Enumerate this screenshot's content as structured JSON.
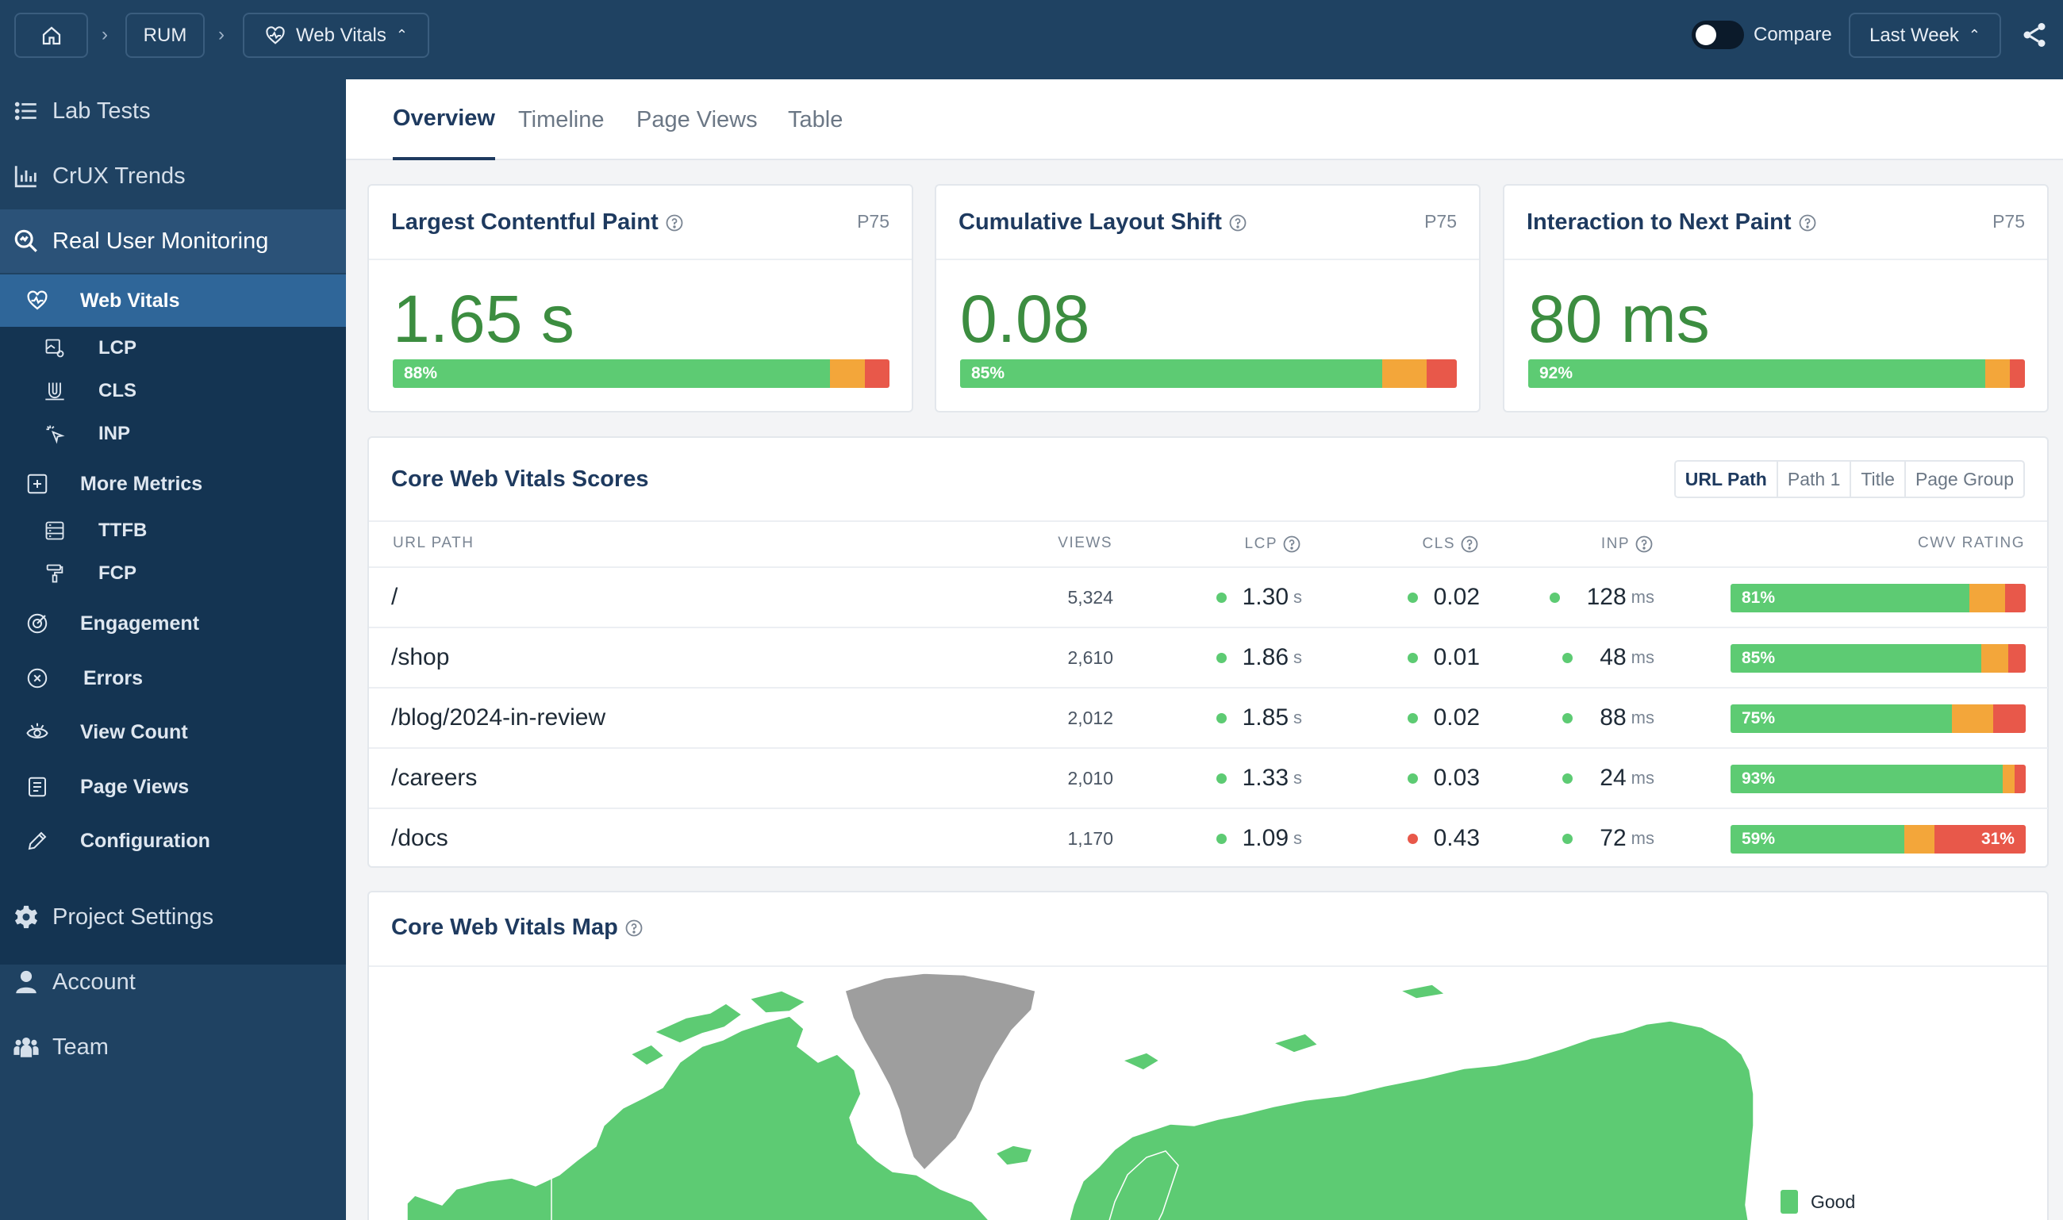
{
  "breadcrumb": {
    "home_icon": "home-icon",
    "rum": "RUM",
    "section": "Web Vitals",
    "section_icon": "heart-pulse-icon"
  },
  "header": {
    "compare_label": "Compare",
    "compare_enabled": false,
    "period": "Last Week",
    "share_icon": "share-icon"
  },
  "sidebar": {
    "items": [
      {
        "label": "Lab Tests",
        "icon": "list-icon"
      },
      {
        "label": "CrUX Trends",
        "icon": "bar-chart-icon"
      },
      {
        "label": "Real User Monitoring",
        "icon": "search-analytics-icon"
      },
      {
        "label": "Project Settings",
        "icon": "gear-icon"
      },
      {
        "label": "Account",
        "icon": "user-icon"
      },
      {
        "label": "Team",
        "icon": "team-icon"
      }
    ],
    "rum_items": [
      {
        "label": "Web Vitals",
        "icon": "heart-pulse-icon"
      },
      {
        "label": "LCP",
        "icon": "image-icon"
      },
      {
        "label": "CLS",
        "icon": "magnet-icon"
      },
      {
        "label": "INP",
        "icon": "pointer-click-icon"
      },
      {
        "label": "More Metrics",
        "icon": "plus-square-icon"
      },
      {
        "label": "TTFB",
        "icon": "server-icon"
      },
      {
        "label": "FCP",
        "icon": "paint-roller-icon"
      },
      {
        "label": "Engagement",
        "icon": "target-icon"
      },
      {
        "label": "Errors",
        "icon": "x-circle-icon"
      },
      {
        "label": "View Count",
        "icon": "eye-icon"
      },
      {
        "label": "Page Views",
        "icon": "document-icon"
      },
      {
        "label": "Configuration",
        "icon": "pencil-icon"
      }
    ]
  },
  "tabs": [
    "Overview",
    "Timeline",
    "Page Views",
    "Table"
  ],
  "metrics": [
    {
      "title": "Largest Contentful Paint",
      "percentile": "P75",
      "value": "1.65 s",
      "good_label": "88%",
      "good": 88,
      "ni": 7,
      "poor": 5
    },
    {
      "title": "Cumulative Layout Shift",
      "percentile": "P75",
      "value": "0.08",
      "good_label": "85%",
      "good": 85,
      "ni": 9,
      "poor": 6
    },
    {
      "title": "Interaction to Next Paint",
      "percentile": "P75",
      "value": "80 ms",
      "good_label": "92%",
      "good": 92,
      "ni": 5,
      "poor": 3
    }
  ],
  "scores": {
    "title": "Core Web Vitals Scores",
    "group_options": [
      "URL Path",
      "Path 1",
      "Title",
      "Page Group"
    ],
    "selected_group": "URL Path",
    "columns": {
      "path": "URL PATH",
      "views": "VIEWS",
      "lcp": "LCP",
      "cls": "CLS",
      "inp": "INP",
      "rating": "CWV RATING"
    },
    "rows": [
      {
        "path": "/",
        "views": "5,324",
        "lcp": "1.30",
        "lcp_unit": "s",
        "cls": "0.02",
        "cls_status": "good",
        "inp": "128",
        "inp_unit": "ms",
        "good_label": "81%",
        "good": 81,
        "ni": 12,
        "poor": 7,
        "poor_label": ""
      },
      {
        "path": "/shop",
        "views": "2,610",
        "lcp": "1.86",
        "lcp_unit": "s",
        "cls": "0.01",
        "cls_status": "good",
        "inp": "48",
        "inp_unit": "ms",
        "good_label": "85%",
        "good": 85,
        "ni": 9,
        "poor": 6,
        "poor_label": ""
      },
      {
        "path": "/blog/2024-in-review",
        "views": "2,012",
        "lcp": "1.85",
        "lcp_unit": "s",
        "cls": "0.02",
        "cls_status": "good",
        "inp": "88",
        "inp_unit": "ms",
        "good_label": "75%",
        "good": 75,
        "ni": 14,
        "poor": 11,
        "poor_label": ""
      },
      {
        "path": "/careers",
        "views": "2,010",
        "lcp": "1.33",
        "lcp_unit": "s",
        "cls": "0.03",
        "cls_status": "good",
        "inp": "24",
        "inp_unit": "ms",
        "good_label": "93%",
        "good": 93,
        "ni": 4,
        "poor": 3,
        "poor_label": ""
      },
      {
        "path": "/docs",
        "views": "1,170",
        "lcp": "1.09",
        "lcp_unit": "s",
        "cls": "0.43",
        "cls_status": "poor",
        "inp": "72",
        "inp_unit": "ms",
        "good_label": "59%",
        "good": 59,
        "ni": 10,
        "poor": 31,
        "poor_label": "31%"
      }
    ]
  },
  "map": {
    "title": "Core Web Vitals Map",
    "legend": [
      "Good"
    ]
  },
  "colors": {
    "good": "#5dcb73",
    "needs_improvement": "#f3a63a",
    "poor": "#e8584a",
    "no_data": "#9e9e9e",
    "nav": "#1f4262"
  }
}
